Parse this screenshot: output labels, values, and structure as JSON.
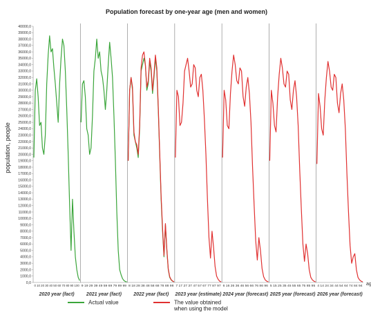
{
  "chart_data": {
    "type": "line",
    "title": "Population forecast by one-year age (men and women)",
    "ylabel": "population, people",
    "xlabel": "",
    "x_unit_label": "ag",
    "ylim": [
      0,
      40000
    ],
    "ytick_step": 1000,
    "ytick_format": "comma_decimal_1",
    "grid": false,
    "legend_position": "bottom",
    "x_per_panel": [
      0,
      10,
      20,
      30,
      40,
      50,
      60,
      70,
      80,
      90,
      100
    ],
    "panels": [
      {
        "label": "2020 year (fact)",
        "series": "actual",
        "tick_labels": "0 10 20 30 40 50 60 70 80 90 100"
      },
      {
        "label": "2021 year (fact)",
        "series": "actual",
        "tick_labels": "9 19 29 39 49 59 69 79 89 99"
      },
      {
        "label": "2022 year (fact)",
        "series": "both",
        "tick_labels": "8 18 28 38 48 58 68 78 88 98"
      },
      {
        "label": "2023 year (estimate)",
        "series": "model",
        "tick_labels": "7 17 27 37 47 57 67 77 87 97"
      },
      {
        "label": "2024 year (forecast)",
        "series": "model",
        "tick_labels": "6 16 26 36 46 56 66 76 86 96"
      },
      {
        "label": "2025 year (forecast)",
        "series": "model",
        "tick_labels": "5 15 25 35 45 55 65 75 85 95"
      },
      {
        "label": "2026 year (forecast)",
        "series": "model",
        "tick_labels": "4 14 24 34 44 54 64 74 84 94"
      }
    ],
    "series": [
      {
        "name": "Actual value",
        "color": "#3aa53a",
        "panels": [
          [
            19500,
            30000,
            31800,
            29000,
            24500,
            25000,
            21000,
            20000,
            23000,
            31000,
            35500,
            38500,
            36000,
            36500,
            33500,
            31000,
            28000,
            25000,
            31000,
            35000,
            38000,
            37000,
            33000,
            27000,
            20000,
            12000,
            5000,
            13000,
            8000,
            4000,
            2000,
            800,
            300
          ],
          [
            25000,
            31000,
            31500,
            29000,
            24000,
            23000,
            20000,
            21000,
            26000,
            33000,
            35000,
            38000,
            35000,
            36000,
            33000,
            32000,
            30000,
            27000,
            30000,
            34000,
            37500,
            35000,
            32000,
            26000,
            19000,
            11000,
            5000,
            2000,
            1200,
            600,
            300,
            150,
            100
          ],
          [
            19000,
            30000,
            32000,
            30000,
            23000,
            22000,
            21000,
            19500,
            24000,
            33000,
            34000,
            35000,
            34000,
            30000,
            31000,
            34500,
            33000,
            29500,
            32000,
            35000,
            33000,
            27000,
            20000,
            13000,
            8000,
            4000,
            9000,
            5000,
            2000,
            800,
            400,
            200,
            100
          ]
        ]
      },
      {
        "name": "The value obtained\nwhen using the model",
        "color": "#e03030",
        "panels": [
          null,
          null,
          [
            19000,
            30000,
            32000,
            30500,
            23500,
            22000,
            21500,
            20000,
            24500,
            33500,
            35500,
            36000,
            34000,
            30500,
            31500,
            35000,
            33500,
            30000,
            32500,
            35500,
            33500,
            27500,
            20500,
            13500,
            8500,
            4200,
            9200,
            5200,
            2100,
            900,
            450,
            220,
            100
          ],
          [
            19500,
            30000,
            29000,
            24500,
            25000,
            28000,
            33000,
            34000,
            35000,
            33000,
            30500,
            31000,
            34000,
            33500,
            30000,
            29000,
            32000,
            32500,
            30000,
            25500,
            20000,
            13000,
            7000,
            3800,
            8000,
            5500,
            2500,
            1000,
            500,
            200,
            100
          ],
          [
            19500,
            30000,
            28500,
            24500,
            24000,
            29500,
            33000,
            35500,
            34000,
            31500,
            31000,
            33500,
            33000,
            29000,
            27500,
            30500,
            32000,
            29500,
            25000,
            18000,
            12000,
            6500,
            3500,
            7000,
            5000,
            2200,
            900,
            400,
            200,
            100
          ],
          [
            19000,
            30000,
            28000,
            24500,
            23500,
            29000,
            32500,
            35000,
            33500,
            31000,
            30500,
            33000,
            32500,
            28500,
            27000,
            30000,
            31500,
            29000,
            24500,
            17500,
            11500,
            6000,
            3300,
            6000,
            4500,
            2000,
            800,
            400,
            200,
            100
          ],
          [
            18500,
            29500,
            27500,
            24000,
            23000,
            28500,
            32000,
            34500,
            33000,
            30500,
            30000,
            32500,
            32000,
            28000,
            26500,
            29500,
            31000,
            28500,
            24000,
            17000,
            11000,
            5800,
            3000,
            4000,
            4500,
            2000,
            800,
            400,
            200,
            100
          ]
        ]
      }
    ]
  }
}
